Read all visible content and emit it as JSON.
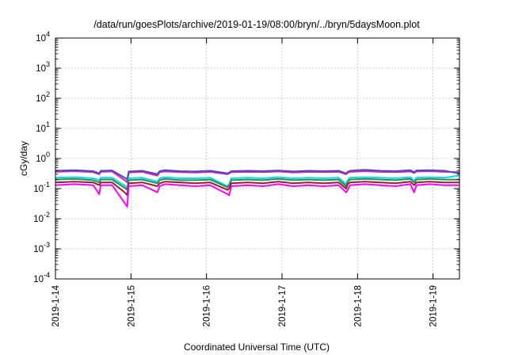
{
  "chart_data": {
    "type": "line",
    "title": "/data/run/goesPlots/archive/2019-01-19/08:00/bryn/../bryn/5daysMoon.plot",
    "xlabel": "Coordinated Universal Time (UTC)",
    "ylabel": "cGy/day",
    "yscale": "log",
    "ylim": [
      0.0001,
      10000
    ],
    "xlim": [
      0,
      5.35
    ],
    "x_unit": "days since 2019-1-14 00:00 UTC",
    "x_ticks": [
      {
        "value": 0,
        "label": "2019-1-14"
      },
      {
        "value": 1,
        "label": "2019-1-15"
      },
      {
        "value": 2,
        "label": "2019-1-16"
      },
      {
        "value": 3,
        "label": "2019-1-17"
      },
      {
        "value": 4,
        "label": "2019-1-18"
      },
      {
        "value": 5,
        "label": "2019-1-19"
      }
    ],
    "y_ticks": [
      {
        "value": 0.0001,
        "base": "10",
        "exp": "-4"
      },
      {
        "value": 0.001,
        "base": "10",
        "exp": "-3"
      },
      {
        "value": 0.01,
        "base": "10",
        "exp": "-2"
      },
      {
        "value": 0.1,
        "base": "10",
        "exp": "-1"
      },
      {
        "value": 1,
        "base": "10",
        "exp": "0"
      },
      {
        "value": 10,
        "base": "10",
        "exp": "1"
      },
      {
        "value": 100,
        "base": "10",
        "exp": "2"
      },
      {
        "value": 1000,
        "base": "10",
        "exp": "3"
      },
      {
        "value": 10000,
        "base": "10",
        "exp": "4"
      }
    ],
    "grid": true,
    "x": [
      0,
      0.25,
      0.5,
      0.58,
      0.6,
      0.75,
      0.93,
      0.95,
      0.97,
      1.15,
      1.35,
      1.38,
      1.45,
      1.65,
      1.85,
      2.05,
      2.28,
      2.3,
      2.33,
      2.55,
      2.75,
      2.95,
      3.15,
      3.35,
      3.55,
      3.75,
      3.85,
      3.87,
      3.9,
      4.1,
      4.3,
      4.5,
      4.7,
      4.75,
      4.78,
      4.95,
      5.15,
      5.35
    ],
    "series": [
      {
        "color": "#ff1493",
        "values": [
          0.36,
          0.38,
          0.35,
          0.3,
          0.36,
          0.37,
          0.18,
          0.16,
          0.34,
          0.36,
          0.27,
          0.35,
          0.37,
          0.35,
          0.34,
          0.36,
          0.3,
          0.32,
          0.35,
          0.36,
          0.35,
          0.37,
          0.34,
          0.36,
          0.35,
          0.36,
          0.3,
          0.33,
          0.36,
          0.38,
          0.36,
          0.35,
          0.37,
          0.33,
          0.37,
          0.38,
          0.36,
          0.35
        ]
      },
      {
        "color": "#3a4fd8",
        "values": [
          0.39,
          0.41,
          0.38,
          0.32,
          0.39,
          0.4,
          0.22,
          0.2,
          0.37,
          0.39,
          0.3,
          0.38,
          0.41,
          0.38,
          0.37,
          0.39,
          0.32,
          0.34,
          0.38,
          0.39,
          0.38,
          0.4,
          0.37,
          0.39,
          0.38,
          0.39,
          0.32,
          0.36,
          0.39,
          0.42,
          0.39,
          0.38,
          0.41,
          0.35,
          0.4,
          0.41,
          0.39,
          0.32
        ]
      },
      {
        "color": "#00e0e0",
        "values": [
          0.23,
          0.24,
          0.22,
          0.19,
          0.23,
          0.23,
          0.12,
          0.1,
          0.22,
          0.23,
          0.17,
          0.22,
          0.24,
          0.22,
          0.22,
          0.23,
          0.12,
          0.14,
          0.22,
          0.23,
          0.22,
          0.24,
          0.22,
          0.23,
          0.22,
          0.23,
          0.14,
          0.19,
          0.23,
          0.24,
          0.23,
          0.22,
          0.24,
          0.18,
          0.23,
          0.24,
          0.23,
          0.27
        ]
      },
      {
        "color": "#2e8b57",
        "values": [
          0.2,
          0.21,
          0.19,
          0.16,
          0.2,
          0.2,
          0.1,
          0.09,
          0.19,
          0.2,
          0.15,
          0.19,
          0.21,
          0.19,
          0.19,
          0.2,
          0.11,
          0.13,
          0.19,
          0.2,
          0.19,
          0.21,
          0.19,
          0.2,
          0.19,
          0.2,
          0.12,
          0.17,
          0.2,
          0.21,
          0.2,
          0.19,
          0.21,
          0.16,
          0.2,
          0.21,
          0.2,
          0.2
        ]
      },
      {
        "color": "#9b1b30",
        "values": [
          0.16,
          0.17,
          0.16,
          0.13,
          0.16,
          0.16,
          0.07,
          0.06,
          0.15,
          0.16,
          0.12,
          0.15,
          0.17,
          0.16,
          0.15,
          0.16,
          0.09,
          0.1,
          0.15,
          0.16,
          0.15,
          0.17,
          0.15,
          0.16,
          0.15,
          0.16,
          0.1,
          0.14,
          0.16,
          0.17,
          0.16,
          0.15,
          0.17,
          0.13,
          0.16,
          0.17,
          0.16,
          0.16
        ]
      },
      {
        "color": "#ff00ff",
        "values": [
          0.13,
          0.14,
          0.13,
          0.065,
          0.13,
          0.13,
          0.03,
          0.025,
          0.12,
          0.13,
          0.075,
          0.12,
          0.14,
          0.13,
          0.12,
          0.13,
          0.065,
          0.06,
          0.12,
          0.13,
          0.12,
          0.14,
          0.12,
          0.13,
          0.12,
          0.13,
          0.075,
          0.09,
          0.13,
          0.14,
          0.13,
          0.12,
          0.14,
          0.075,
          0.13,
          0.14,
          0.13,
          0.13
        ]
      }
    ]
  }
}
